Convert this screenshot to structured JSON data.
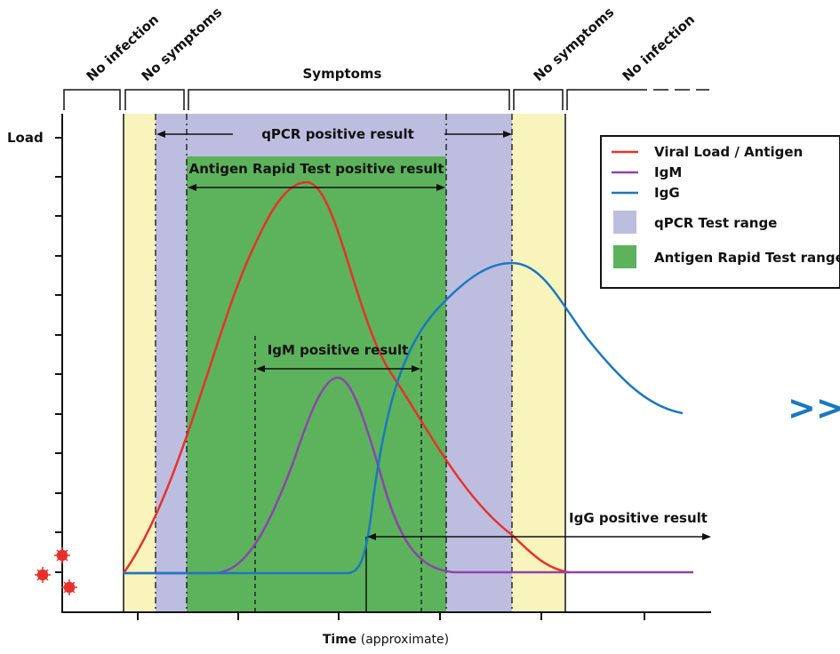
{
  "phases": {
    "no_infection_left": "No infection",
    "no_symptoms_left": "No symptoms",
    "symptoms": "Symptoms",
    "no_symptoms_right": "No symptoms",
    "no_infection_right": "No infection"
  },
  "results": {
    "qpcr": "qPCR positive result",
    "antigen": "Antigen Rapid Test positive result",
    "igm": "IgM positive result",
    "igg": "IgG positive result"
  },
  "axes": {
    "y_label": "Load",
    "x_label_bold": "Time",
    "x_label_rest": " (approximate)"
  },
  "legend": [
    {
      "label": "Viral Load / Antigen",
      "kind": "line",
      "color": "#e8302a"
    },
    {
      "label": "IgM",
      "kind": "line",
      "color": "#8e44ad"
    },
    {
      "label": "IgG",
      "kind": "line",
      "color": "#1a78c2"
    },
    {
      "label": "qPCR Test range",
      "kind": "box",
      "color": "#bdbde0"
    },
    {
      "label": "Antigen Rapid Test range",
      "kind": "box",
      "color": "#5cb35c"
    }
  ],
  "nav": {
    "next": ">>"
  },
  "colors": {
    "no_symptoms_band": "#f8f4bc",
    "qpcr_band": "#bdbde0",
    "antigen_band": "#5cb35c",
    "viral_load": "#e8302a",
    "igm": "#8e44ad",
    "igg": "#1a78c2",
    "virus_icon": "#e8302a",
    "nav_arrow": "#1a78c2"
  }
}
